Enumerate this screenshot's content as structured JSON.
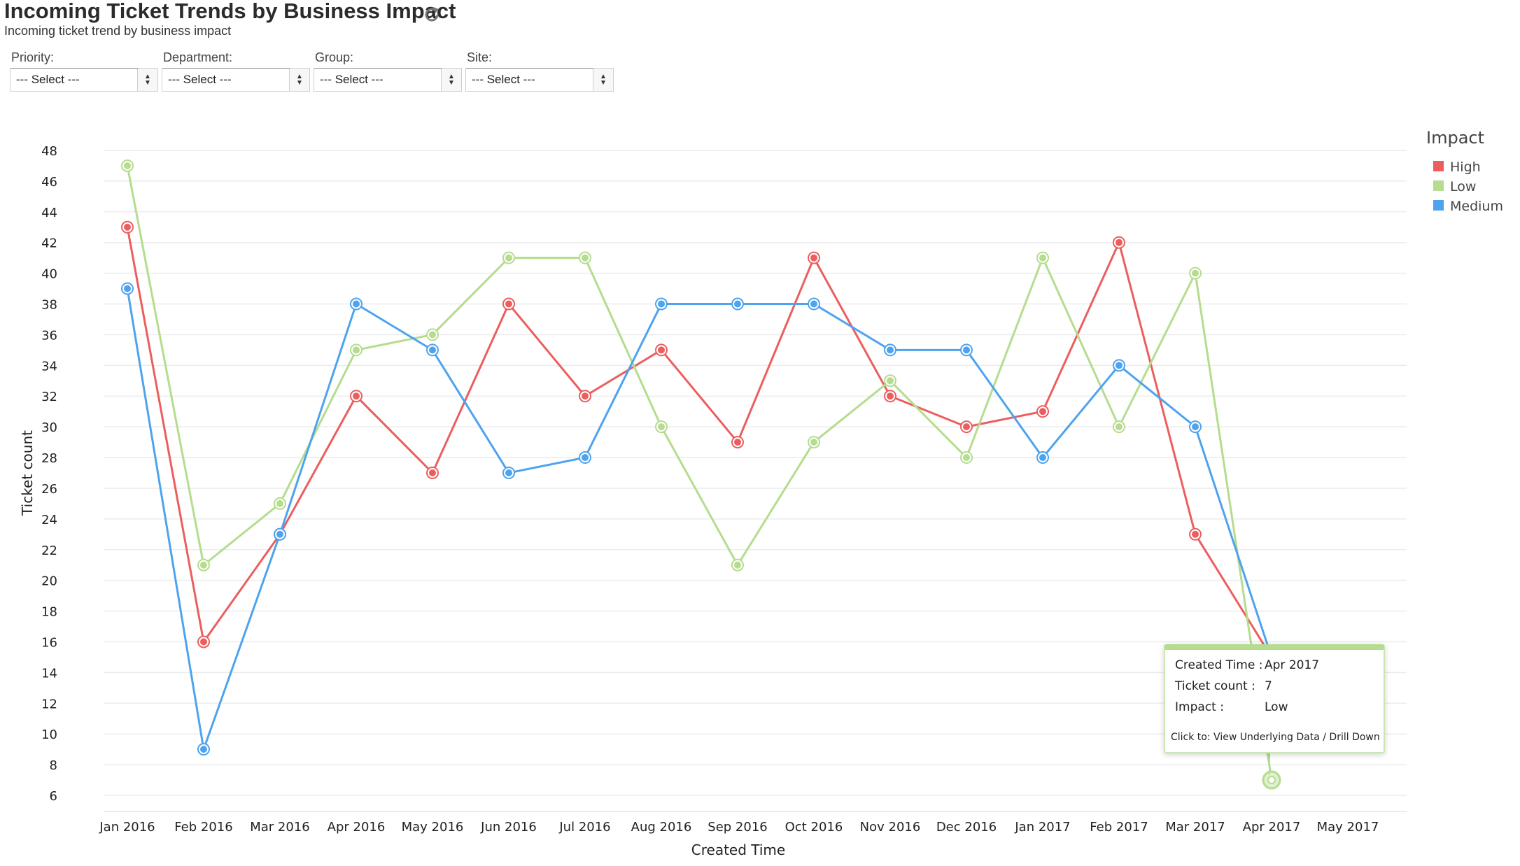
{
  "header": {
    "title": "Incoming Ticket Trends by Business Impact",
    "subtitle": "Incoming ticket trend by business impact",
    "refresh_icon": "refresh-icon"
  },
  "filters": [
    {
      "label": "Priority:",
      "value": "--- Select ---"
    },
    {
      "label": "Department:",
      "value": "--- Select ---"
    },
    {
      "label": "Group:",
      "value": "--- Select ---"
    },
    {
      "label": "Site:",
      "value": "--- Select ---"
    }
  ],
  "chart_data": {
    "type": "line",
    "title": "",
    "xlabel": "Created Time",
    "ylabel": "Ticket count",
    "categories": [
      "Jan 2016",
      "Feb 2016",
      "Mar 2016",
      "Apr 2016",
      "May 2016",
      "Jun 2016",
      "Jul 2016",
      "Aug 2016",
      "Sep 2016",
      "Oct 2016",
      "Nov 2016",
      "Dec 2016",
      "Jan 2017",
      "Feb 2017",
      "Mar 2017",
      "Apr 2017",
      "May 2017"
    ],
    "ylim": [
      6,
      48
    ],
    "yticks": [
      6,
      8,
      10,
      12,
      14,
      16,
      18,
      20,
      22,
      24,
      26,
      28,
      30,
      32,
      34,
      36,
      38,
      40,
      42,
      44,
      46,
      48
    ],
    "grid": true,
    "legend": {
      "title": "Impact",
      "placement": "right"
    },
    "series": [
      {
        "name": "High",
        "color": "#ec5e5e",
        "values": [
          43,
          16,
          23,
          32,
          27,
          38,
          32,
          35,
          29,
          41,
          32,
          30,
          31,
          42,
          23,
          15,
          null
        ]
      },
      {
        "name": "Low",
        "color": "#b5dc8f",
        "values": [
          47,
          21,
          25,
          35,
          36,
          41,
          41,
          30,
          21,
          29,
          33,
          28,
          41,
          30,
          40,
          7,
          null
        ]
      },
      {
        "name": "Medium",
        "color": "#4ea3ef",
        "values": [
          39,
          9,
          23,
          38,
          35,
          27,
          28,
          38,
          38,
          38,
          35,
          35,
          28,
          34,
          30,
          15,
          null
        ]
      }
    ]
  },
  "tooltip": {
    "created_time_label": "Created Time :",
    "created_time_value": "Apr 2017",
    "ticket_count_label": "Ticket count :",
    "ticket_count_value": "7",
    "impact_label": "Impact :",
    "impact_value": "Low",
    "footer_prefix": "Click to:",
    "footer_links": "View Underlying Data / Drill Down"
  }
}
